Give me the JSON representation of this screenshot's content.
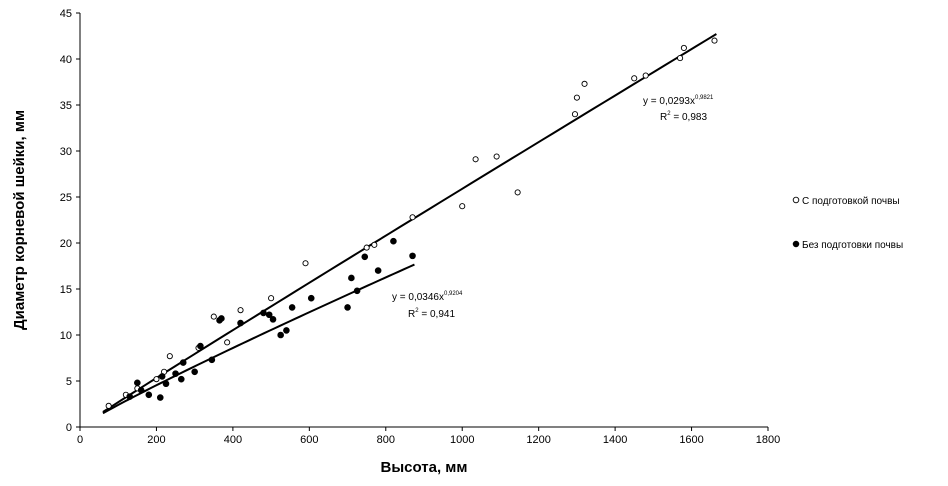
{
  "chart_data": {
    "type": "scatter",
    "xlabel": "Высота, мм",
    "ylabel": "Диаметр корневой шейки, мм",
    "xlim": [
      0,
      1800
    ],
    "ylim": [
      0,
      45
    ],
    "x_ticks": [
      "0",
      "200",
      "400",
      "600",
      "800",
      "1000",
      "1200",
      "1400",
      "1600",
      "1800"
    ],
    "y_ticks": [
      "0",
      "5",
      "10",
      "15",
      "20",
      "25",
      "30",
      "35",
      "40",
      "45"
    ],
    "grid": false,
    "legend_position": "right",
    "series": [
      {
        "name": "С подготовкой почвы",
        "marker": "open-circle",
        "points": [
          [
            75,
            2.3
          ],
          [
            120,
            3.5
          ],
          [
            150,
            4.2
          ],
          [
            200,
            5.2
          ],
          [
            220,
            6.0
          ],
          [
            235,
            7.7
          ],
          [
            270,
            7.0
          ],
          [
            310,
            8.6
          ],
          [
            350,
            12.0
          ],
          [
            385,
            9.2
          ],
          [
            420,
            12.7
          ],
          [
            500,
            14.0
          ],
          [
            590,
            17.8
          ],
          [
            750,
            19.5
          ],
          [
            770,
            19.8
          ],
          [
            870,
            22.8
          ],
          [
            1000,
            24.0
          ],
          [
            1035,
            29.1
          ],
          [
            1090,
            29.4
          ],
          [
            1145,
            25.5
          ],
          [
            1295,
            34.0
          ],
          [
            1300,
            35.8
          ],
          [
            1320,
            37.3
          ],
          [
            1450,
            37.9
          ],
          [
            1480,
            38.2
          ],
          [
            1570,
            40.1
          ],
          [
            1580,
            41.2
          ],
          [
            1660,
            42.0
          ]
        ],
        "fit": {
          "equation_label": "y = 0,0293x",
          "exponent_label": "0,9821",
          "r2_label": "R",
          "r2_sup": "2",
          "r2_value_label": " = 0,983",
          "a": 0.0293,
          "b": 0.9821,
          "x_range": [
            60,
            1665
          ]
        }
      },
      {
        "name": "Без подготовки почвы",
        "marker": "filled-circle",
        "points": [
          [
            130,
            3.3
          ],
          [
            150,
            4.8
          ],
          [
            160,
            4.0
          ],
          [
            180,
            3.5
          ],
          [
            210,
            3.2
          ],
          [
            215,
            5.5
          ],
          [
            225,
            4.7
          ],
          [
            250,
            5.8
          ],
          [
            265,
            5.2
          ],
          [
            270,
            7.0
          ],
          [
            300,
            6.0
          ],
          [
            315,
            8.8
          ],
          [
            345,
            7.3
          ],
          [
            365,
            11.6
          ],
          [
            370,
            11.8
          ],
          [
            420,
            11.3
          ],
          [
            480,
            12.4
          ],
          [
            495,
            12.2
          ],
          [
            505,
            11.7
          ],
          [
            525,
            10.0
          ],
          [
            540,
            10.5
          ],
          [
            555,
            13.0
          ],
          [
            605,
            14.0
          ],
          [
            700,
            13.0
          ],
          [
            710,
            16.2
          ],
          [
            725,
            14.8
          ],
          [
            745,
            18.5
          ],
          [
            780,
            17.0
          ],
          [
            820,
            20.2
          ],
          [
            870,
            18.6
          ]
        ],
        "fit": {
          "equation_label": "y = 0,0346x",
          "exponent_label": "0,9204",
          "r2_label": "R",
          "r2_sup": "2",
          "r2_value_label": " = 0,941",
          "a": 0.0346,
          "b": 0.9204,
          "x_range": [
            60,
            875
          ]
        }
      }
    ]
  }
}
